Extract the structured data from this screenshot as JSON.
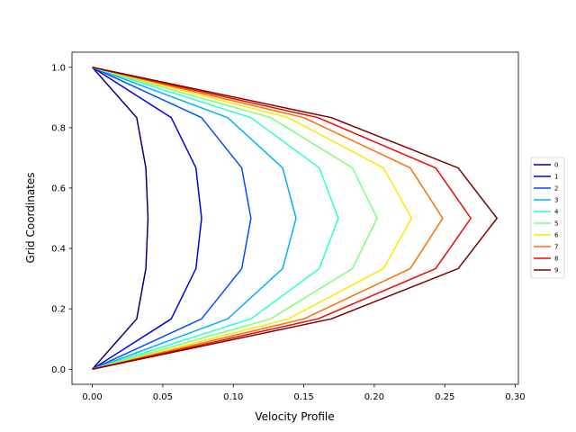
{
  "chart_data": {
    "type": "line",
    "xlabel": "Velocity Profile",
    "ylabel": "Grid Coordinates",
    "xlim": [
      -0.0144,
      0.3022
    ],
    "ylim": [
      -0.05,
      1.05
    ],
    "xticks": [
      0.0,
      0.05,
      0.1,
      0.15,
      0.2,
      0.25,
      0.3
    ],
    "xtick_labels": [
      "0.00",
      "0.05",
      "0.10",
      "0.15",
      "0.20",
      "0.25",
      "0.30"
    ],
    "yticks": [
      0.0,
      0.2,
      0.4,
      0.6,
      0.8,
      1.0
    ],
    "ytick_labels": [
      "0.0",
      "0.2",
      "0.4",
      "0.6",
      "0.8",
      "1.0"
    ],
    "grid": false,
    "legend_position": "right, outside plot",
    "y": [
      0.0,
      0.1667,
      0.3333,
      0.5,
      0.6667,
      0.8333,
      1.0
    ],
    "series": [
      {
        "name": "0",
        "color": "#00007f",
        "values": [
          0.0,
          0.0315,
          0.038,
          0.0395,
          0.038,
          0.0315,
          0.0
        ]
      },
      {
        "name": "1",
        "color": "#0000f1",
        "values": [
          0.0,
          0.056,
          0.0735,
          0.0775,
          0.0735,
          0.056,
          0.0
        ]
      },
      {
        "name": "2",
        "color": "#004cff",
        "values": [
          0.0,
          0.0775,
          0.106,
          0.1125,
          0.106,
          0.0775,
          0.0
        ]
      },
      {
        "name": "3",
        "color": "#00b0ff",
        "values": [
          0.0,
          0.096,
          0.135,
          0.1445,
          0.135,
          0.096,
          0.0
        ]
      },
      {
        "name": "4",
        "color": "#29ffce",
        "values": [
          0.0,
          0.1125,
          0.161,
          0.1745,
          0.161,
          0.1125,
          0.0
        ]
      },
      {
        "name": "5",
        "color": "#7dff7a",
        "values": [
          0.0,
          0.1265,
          0.1845,
          0.202,
          0.1845,
          0.1265,
          0.0
        ]
      },
      {
        "name": "6",
        "color": "#ffe600",
        "values": [
          0.0,
          0.139,
          0.2065,
          0.2265,
          0.2065,
          0.139,
          0.0
        ]
      },
      {
        "name": "7",
        "color": "#ff6e00",
        "values": [
          0.0,
          0.15,
          0.2255,
          0.2485,
          0.2255,
          0.15,
          0.0
        ]
      },
      {
        "name": "8",
        "color": "#f10800",
        "values": [
          0.0,
          0.16,
          0.2435,
          0.2685,
          0.2435,
          0.16,
          0.0
        ]
      },
      {
        "name": "9",
        "color": "#7f0000",
        "values": [
          0.0,
          0.1695,
          0.2595,
          0.287,
          0.2595,
          0.1695,
          0.0
        ]
      }
    ]
  }
}
